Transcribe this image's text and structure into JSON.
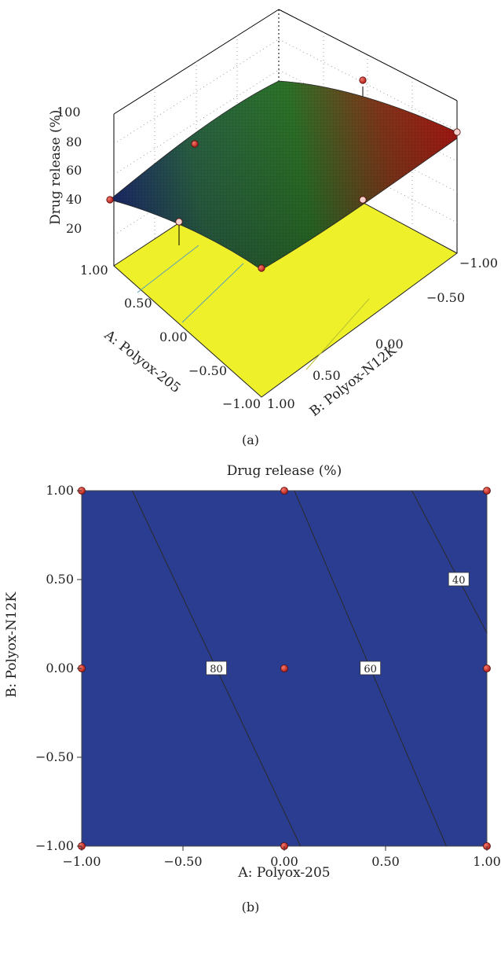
{
  "panel_a": {
    "caption": "(a)",
    "zlabel": "Drug release (%)",
    "xlabel": "A: Polyox-205",
    "ylabel": "B: Polyox-N12K",
    "z_ticks": [
      "100",
      "80",
      "60",
      "40",
      "20"
    ],
    "a_ticks": [
      "1.00",
      "0.50",
      "0.00",
      "−0.50",
      "−1.00"
    ],
    "b_ticks": [
      "−1.00",
      "−0.50",
      "0.00",
      "0.50",
      "1.00"
    ]
  },
  "panel_b": {
    "caption": "(b)",
    "title": "Drug release (%)",
    "xlabel": "A: Polyox-205",
    "ylabel": "B: Polyox-N12K",
    "x_ticks": [
      "−1.00",
      "−0.50",
      "0.00",
      "0.50",
      "1.00"
    ],
    "y_ticks": [
      "1.00",
      "0.50",
      "0.00",
      "−0.50",
      "−1.00"
    ],
    "contour_labels": [
      "80",
      "60",
      "40"
    ]
  },
  "colors": {
    "high": "#e42524",
    "mid": "#f6eb25",
    "green": "#5ab535",
    "cyan": "#2fb2e6",
    "low": "#2a3d91",
    "point": "#c0201f"
  },
  "chart_data": [
    {
      "type": "surface",
      "title": "",
      "xlabel": "A: Polyox-205",
      "ylabel": "B: Polyox-N12K",
      "zlabel": "Drug release (%)",
      "xlim": [
        -1,
        1
      ],
      "ylim": [
        -1,
        1
      ],
      "zlim": [
        20,
        100
      ],
      "design_points": [
        {
          "a": 1,
          "b": -1,
          "release": 78
        },
        {
          "a": 1,
          "b": 1,
          "release": 40
        },
        {
          "a": 0,
          "b": 0,
          "release": 72
        },
        {
          "a": -1,
          "b": -1,
          "release": 88
        },
        {
          "a": -1,
          "b": 1,
          "release": 25
        },
        {
          "a": 0,
          "b": 1,
          "release": 80
        }
      ]
    },
    {
      "type": "contour",
      "title": "Drug release (%)",
      "xlabel": "A: Polyox-205",
      "ylabel": "B: Polyox-N12K",
      "xlim": [
        -1,
        1
      ],
      "ylim": [
        -1,
        1
      ],
      "contours": [
        {
          "level": 80,
          "points": [
            [
              -0.75,
              1.0
            ],
            [
              0.08,
              -1.0
            ]
          ]
        },
        {
          "level": 60,
          "points": [
            [
              0.05,
              1.0
            ],
            [
              0.8,
              -1.0
            ]
          ]
        },
        {
          "level": 40,
          "points": [
            [
              0.63,
              1.0
            ],
            [
              1.0,
              0.2
            ]
          ]
        }
      ],
      "design_points": [
        [
          -1,
          1
        ],
        [
          0,
          1
        ],
        [
          1,
          1
        ],
        [
          -1,
          0
        ],
        [
          0,
          0
        ],
        [
          1,
          0
        ],
        [
          -1,
          -1
        ],
        [
          0,
          -1
        ],
        [
          1,
          -1
        ]
      ],
      "color_scale": [
        "#2a3d91",
        "#2fb2e6",
        "#5ab535",
        "#f6eb25",
        "#f4a422",
        "#e42524"
      ]
    }
  ]
}
